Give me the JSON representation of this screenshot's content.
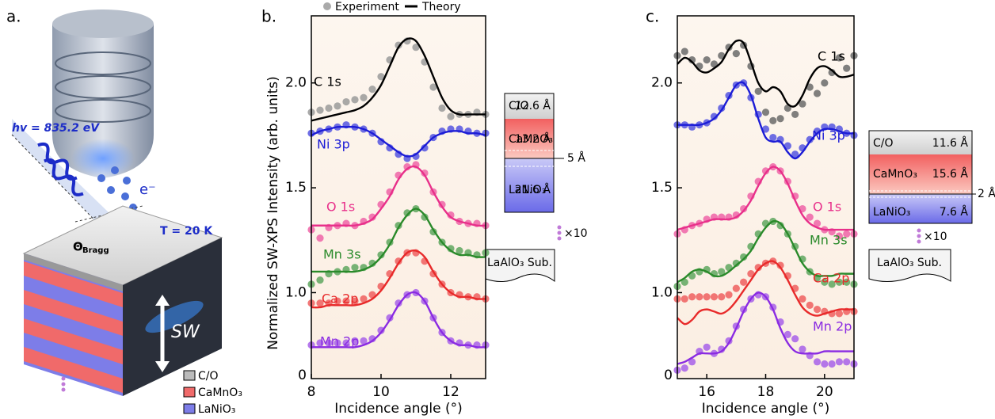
{
  "panel_labels": [
    "a.",
    "b.",
    "c."
  ],
  "panel_a": {
    "photon": "hv = 835.2 eV",
    "electron": "e⁻",
    "temperature": "T = 20 K",
    "theta": "Θ",
    "theta_sub": "Bragg",
    "standing_wave": "SW",
    "legend": [
      "C/O",
      "CaMnO₃",
      "LaNiO₃"
    ]
  },
  "layers_b": {
    "rows": [
      [
        "C/O",
        "12.6 Å"
      ],
      [
        "CaMnO₃",
        "13.2 Å"
      ],
      [
        "LaNiO₃",
        "21.6 Å"
      ]
    ],
    "interface": "5 Å",
    "repeat": "×10",
    "substrate": "LaAlO₃ Sub."
  },
  "layers_c": {
    "rows": [
      [
        "C/O",
        "11.6 Å"
      ],
      [
        "CaMnO₃",
        "15.6 Å"
      ],
      [
        "LaNiO₃",
        "7.6 Å"
      ]
    ],
    "interface": "2 Å",
    "repeat": "×10",
    "substrate": "LaAlO₃ Sub."
  },
  "chart_data": [
    {
      "type": "line",
      "y_title": "Normalized SW-XPS Intensity (arb. units)",
      "x_title": "Incidence angle (°)",
      "legend": [
        "Experiment",
        "Theory"
      ],
      "y_bottom_label": "0",
      "xlim": [
        8,
        13
      ],
      "xticks": [
        8,
        10,
        12
      ],
      "ylim": [
        0.59,
        2.32
      ],
      "yticks": [
        {
          "value": 1,
          "label": "1.0"
        },
        1.5,
        {
          "value": 2,
          "label": "2.0"
        }
      ],
      "x": [
        8,
        8.25,
        8.5,
        8.75,
        9,
        9.25,
        9.5,
        9.75,
        10,
        10.25,
        10.5,
        10.75,
        11,
        11.25,
        11.5,
        11.75,
        12,
        12.25,
        12.5,
        12.75,
        13
      ],
      "series": [
        {
          "name": "C 1s",
          "color": "#000000",
          "values": [
            1.86,
            1.87,
            1.88,
            1.89,
            1.91,
            1.92,
            1.93,
            1.97,
            2.03,
            2.11,
            2.18,
            2.2,
            2.17,
            2.1,
            1.98,
            1.88,
            1.84,
            1.85,
            1.85,
            1.86,
            1.85
          ],
          "theory": [
            1.82,
            1.83,
            1.84,
            1.85,
            1.86,
            1.87,
            1.89,
            1.93,
            1.99,
            2.08,
            2.17,
            2.21,
            2.2,
            2.13,
            2.03,
            1.93,
            1.87,
            1.85,
            1.85,
            1.85,
            1.85
          ]
        },
        {
          "name": "Ni 3p",
          "color": "#1c1cd6",
          "values": [
            1.76,
            1.77,
            1.78,
            1.79,
            1.8,
            1.79,
            1.78,
            1.76,
            1.72,
            1.69,
            1.66,
            1.64,
            1.65,
            1.69,
            1.74,
            1.77,
            1.78,
            1.78,
            1.77,
            1.76,
            1.76
          ],
          "theory": [
            1.75,
            1.77,
            1.78,
            1.79,
            1.79,
            1.79,
            1.78,
            1.76,
            1.73,
            1.7,
            1.67,
            1.65,
            1.66,
            1.7,
            1.74,
            1.76,
            1.77,
            1.77,
            1.76,
            1.76,
            1.75
          ]
        },
        {
          "name": "O 1s",
          "color": "#e8308a",
          "values": [
            1.3,
            1.26,
            1.31,
            1.32,
            1.33,
            1.32,
            1.34,
            1.36,
            1.42,
            1.48,
            1.56,
            1.6,
            1.61,
            1.57,
            1.48,
            1.42,
            1.37,
            1.34,
            1.33,
            1.33,
            1.32
          ],
          "theory": [
            1.32,
            1.32,
            1.32,
            1.32,
            1.32,
            1.32,
            1.33,
            1.35,
            1.4,
            1.46,
            1.54,
            1.59,
            1.6,
            1.56,
            1.48,
            1.41,
            1.36,
            1.34,
            1.33,
            1.32,
            1.32
          ]
        },
        {
          "name": "Mn 3s",
          "color": "#2a8a2a",
          "values": [
            1.04,
            1.06,
            1.09,
            1.1,
            1.11,
            1.12,
            1.12,
            1.14,
            1.18,
            1.24,
            1.32,
            1.38,
            1.4,
            1.36,
            1.29,
            1.24,
            1.21,
            1.2,
            1.19,
            1.18,
            1.19
          ],
          "theory": [
            1.1,
            1.1,
            1.1,
            1.1,
            1.1,
            1.1,
            1.11,
            1.13,
            1.17,
            1.23,
            1.31,
            1.37,
            1.4,
            1.37,
            1.3,
            1.24,
            1.2,
            1.18,
            1.18,
            1.17,
            1.17
          ]
        },
        {
          "name": "Ca 2p",
          "color": "#e82a2a",
          "values": [
            0.95,
            0.95,
            0.95,
            0.96,
            0.96,
            0.96,
            0.97,
            0.99,
            1.03,
            1.09,
            1.15,
            1.19,
            1.19,
            1.15,
            1.09,
            1.04,
            1,
            0.99,
            0.98,
            0.98,
            0.97
          ],
          "theory": [
            0.93,
            0.93,
            0.94,
            0.94,
            0.94,
            0.94,
            0.95,
            0.97,
            1.01,
            1.07,
            1.14,
            1.19,
            1.2,
            1.17,
            1.1,
            1.04,
            1,
            0.98,
            0.98,
            0.97,
            0.97
          ]
        },
        {
          "name": "Mn 2p",
          "color": "#8a2be2",
          "values": [
            0.75,
            0.76,
            0.76,
            0.76,
            0.76,
            0.77,
            0.77,
            0.78,
            0.82,
            0.88,
            0.95,
            0.99,
            1,
            0.96,
            0.88,
            0.81,
            0.77,
            0.76,
            0.75,
            0.75,
            0.75
          ],
          "theory": [
            0.74,
            0.74,
            0.74,
            0.74,
            0.74,
            0.74,
            0.75,
            0.77,
            0.81,
            0.87,
            0.94,
            0.99,
            1,
            0.96,
            0.88,
            0.81,
            0.77,
            0.75,
            0.75,
            0.74,
            0.74
          ]
        }
      ]
    },
    {
      "type": "line",
      "x_title": "Incidence angle (°)",
      "y_bottom_label": "0",
      "xlim": [
        15,
        21
      ],
      "xticks": [
        16,
        18,
        20
      ],
      "ylim": [
        0.59,
        2.32
      ],
      "yticks": [
        {
          "value": 1,
          "label": "1.0"
        },
        1.5,
        {
          "value": 2,
          "label": "2.0"
        }
      ],
      "x": [
        15,
        15.25,
        15.5,
        15.75,
        16,
        16.25,
        16.5,
        16.75,
        17,
        17.25,
        17.5,
        17.75,
        18,
        18.25,
        18.5,
        18.75,
        19,
        19.25,
        19.5,
        19.75,
        20,
        20.25,
        20.5,
        20.75,
        21
      ],
      "series": [
        {
          "name": "C 1s",
          "color": "#000000",
          "values": [
            2.13,
            2.15,
            2.11,
            2.08,
            2.11,
            2.09,
            2.13,
            2.17,
            2.14,
            2.18,
            2.08,
            1.96,
            1.86,
            1.82,
            1.83,
            1.88,
            1.85,
            1.9,
            1.98,
            1.95,
            2,
            2.05,
            2.12,
            2.07,
            2.13
          ],
          "theory": [
            2.09,
            2.12,
            2.1,
            2.06,
            2.05,
            2.07,
            2.1,
            2.16,
            2.2,
            2.19,
            2.1,
            2,
            1.96,
            1.98,
            1.96,
            1.9,
            1.89,
            1.94,
            2.02,
            2.07,
            2.08,
            2.06,
            2.03,
            2.03,
            2.04
          ]
        },
        {
          "name": "Ni 3p",
          "color": "#1c1cd6",
          "values": [
            1.8,
            1.8,
            1.79,
            1.8,
            1.81,
            1.84,
            1.88,
            1.94,
            1.99,
            2,
            1.93,
            1.85,
            1.78,
            1.74,
            1.73,
            1.7,
            1.66,
            1.69,
            1.73,
            1.77,
            1.79,
            1.79,
            1.78,
            1.76,
            1.75
          ],
          "theory": [
            1.8,
            1.8,
            1.8,
            1.8,
            1.81,
            1.83,
            1.87,
            1.93,
            1.99,
            2,
            1.94,
            1.83,
            1.74,
            1.72,
            1.72,
            1.67,
            1.64,
            1.67,
            1.72,
            1.76,
            1.78,
            1.78,
            1.77,
            1.76,
            1.76
          ]
        },
        {
          "name": "O 1s",
          "color": "#e8308a",
          "values": [
            1.28,
            1.3,
            1.32,
            1.33,
            1.35,
            1.36,
            1.36,
            1.36,
            1.37,
            1.4,
            1.46,
            1.53,
            1.58,
            1.6,
            1.58,
            1.53,
            1.46,
            1.4,
            1.36,
            1.33,
            1.3,
            1.29,
            1.27,
            1.28,
            1.28
          ],
          "theory": [
            1.3,
            1.31,
            1.32,
            1.33,
            1.34,
            1.35,
            1.35,
            1.35,
            1.36,
            1.39,
            1.44,
            1.51,
            1.57,
            1.6,
            1.58,
            1.52,
            1.44,
            1.37,
            1.33,
            1.31,
            1.3,
            1.3,
            1.3,
            1.3,
            1.3
          ]
        },
        {
          "name": "Mn 3s",
          "color": "#2a8a2a",
          "values": [
            1.03,
            1.05,
            1.08,
            1.1,
            1.11,
            1.09,
            1.1,
            1.12,
            1.14,
            1.17,
            1.22,
            1.28,
            1.33,
            1.34,
            1.32,
            1.28,
            1.22,
            1.16,
            1.1,
            1.07,
            1.05,
            1.04,
            1.05,
            1.05,
            1.04
          ],
          "theory": [
            1.05,
            1.07,
            1.1,
            1.11,
            1.1,
            1.08,
            1.08,
            1.1,
            1.13,
            1.16,
            1.2,
            1.26,
            1.31,
            1.34,
            1.33,
            1.28,
            1.21,
            1.14,
            1.1,
            1.08,
            1.08,
            1.08,
            1.09,
            1.09,
            1.09
          ]
        },
        {
          "name": "Ca 2p",
          "color": "#e82a2a",
          "values": [
            0.97,
            0.97,
            0.98,
            0.98,
            0.98,
            0.98,
            0.98,
            0.99,
            1.02,
            1.05,
            1.09,
            1.12,
            1.14,
            1.15,
            1.13,
            1.08,
            1.02,
            0.97,
            0.94,
            0.92,
            0.91,
            0.9,
            0.9,
            0.91,
            0.91
          ],
          "theory": [
            0.88,
            0.85,
            0.87,
            0.91,
            0.92,
            0.91,
            0.9,
            0.92,
            0.96,
            1.01,
            1.06,
            1.11,
            1.14,
            1.15,
            1.12,
            1.06,
            0.99,
            0.93,
            0.9,
            0.89,
            0.9,
            0.91,
            0.92,
            0.92,
            0.92
          ]
        },
        {
          "name": "Mn 2p",
          "color": "#8a2be2",
          "values": [
            0.63,
            0.64,
            0.67,
            0.72,
            0.74,
            0.71,
            0.73,
            0.77,
            0.84,
            0.92,
            0.97,
            0.99,
            0.98,
            0.93,
            0.86,
            0.8,
            0.78,
            0.73,
            0.7,
            0.67,
            0.66,
            0.66,
            0.67,
            0.67,
            0.66
          ],
          "theory": [
            0.66,
            0.67,
            0.69,
            0.71,
            0.71,
            0.71,
            0.72,
            0.76,
            0.83,
            0.91,
            0.97,
            1,
            0.98,
            0.92,
            0.83,
            0.76,
            0.72,
            0.71,
            0.71,
            0.71,
            0.72,
            0.72,
            0.72,
            0.72,
            0.72
          ]
        }
      ]
    }
  ]
}
